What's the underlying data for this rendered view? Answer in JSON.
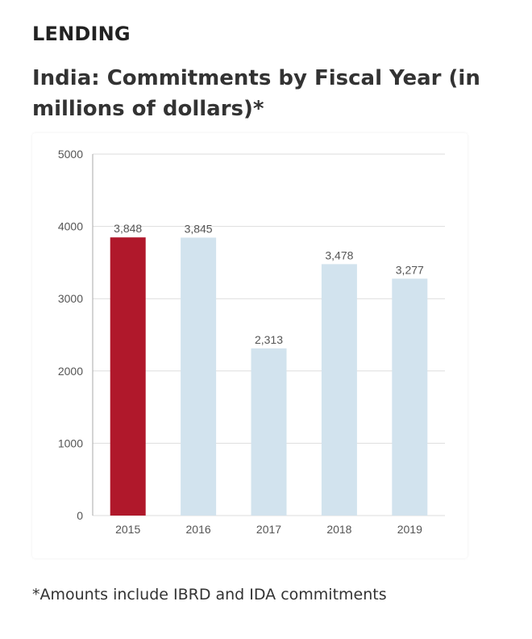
{
  "section_label": "LENDING",
  "chart_title": "India: Commitments by Fiscal Year (in millions of dollars)*",
  "footnote": "*Amounts include IBRD and IDA commitments",
  "colors": {
    "highlight_bar": "#b0182b",
    "default_bar": "#d2e3ee",
    "gridline": "#dddddd",
    "axis": "#aaaaaa"
  },
  "chart_data": {
    "type": "bar",
    "categories": [
      "2015",
      "2016",
      "2017",
      "2018",
      "2019"
    ],
    "values": [
      3848,
      3845,
      2313,
      3478,
      3277
    ],
    "data_labels": [
      "3,848",
      "3,845",
      "2,313",
      "3,478",
      "3,277"
    ],
    "highlighted": [
      "2015"
    ],
    "ylim": [
      0,
      5000
    ],
    "yticks": [
      0,
      1000,
      2000,
      3000,
      4000,
      5000
    ],
    "ytick_labels": [
      "0",
      "1000",
      "2000",
      "3000",
      "4000",
      "5000"
    ],
    "grid": true,
    "legend": "none",
    "title": "India: Commitments by Fiscal Year (in millions of dollars)*",
    "xlabel": "",
    "ylabel": ""
  }
}
